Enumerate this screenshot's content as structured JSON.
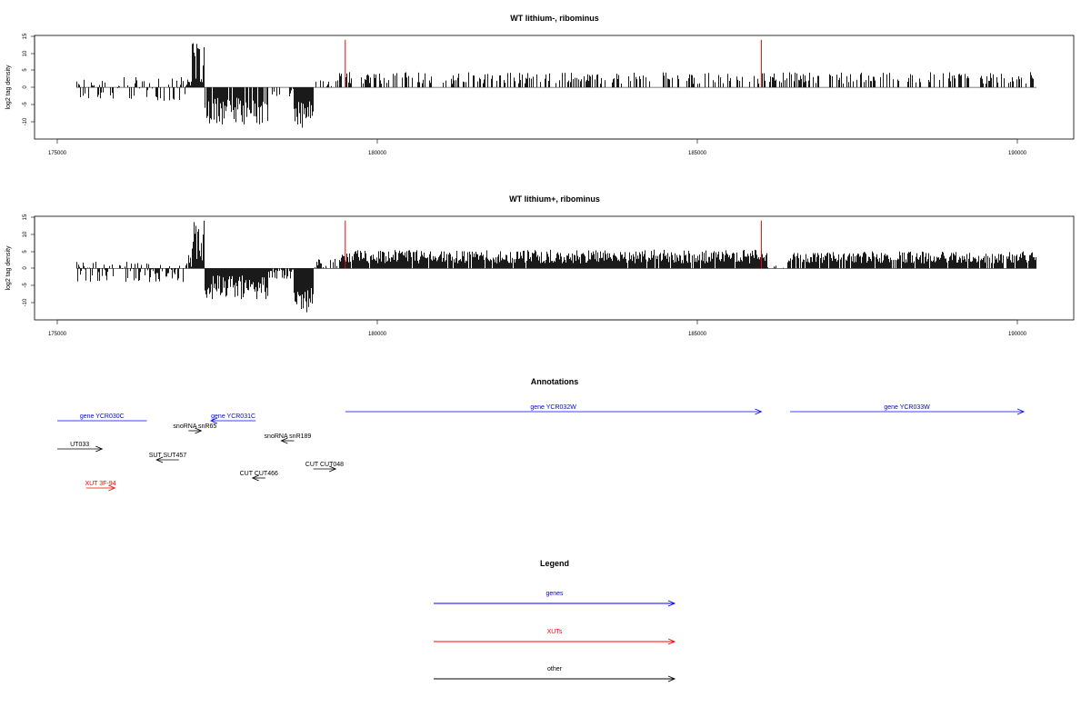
{
  "colors": {
    "genes": "#0000ff",
    "XUTs": "#ff0000",
    "other": "#000000",
    "highlight": "#ff0000",
    "signal": "#000000"
  },
  "chart_data": [
    {
      "type": "bar",
      "title": "WT lithium-, ribominus",
      "ylabel": "log2 tag density",
      "xlim": [
        175000,
        190300
      ],
      "ylim": [
        -15,
        15
      ],
      "x_ticks": [
        "175000",
        "180000",
        "185000",
        "190000"
      ],
      "y_ticks": [
        "15",
        "10",
        "5",
        "0",
        "-5",
        "-10"
      ],
      "highlight_x": [
        179500,
        186000
      ],
      "highlight_top": 14,
      "segments": [
        {
          "from": 175300,
          "to": 177000,
          "min": -4,
          "max": 3,
          "density": 0.45
        },
        {
          "from": 177000,
          "to": 177100,
          "min": 0,
          "max": 4,
          "density": 0.8
        },
        {
          "from": 177100,
          "to": 177300,
          "min": 1,
          "max": 13,
          "density": 1
        },
        {
          "from": 177300,
          "to": 178300,
          "min": -11,
          "max": -3,
          "density": 0.9
        },
        {
          "from": 178300,
          "to": 178700,
          "min": -3,
          "max": 0,
          "density": 0.3
        },
        {
          "from": 178700,
          "to": 179000,
          "min": -12,
          "max": -4,
          "density": 1
        },
        {
          "from": 179000,
          "to": 179400,
          "min": 0,
          "max": 3,
          "density": 0.2
        },
        {
          "from": 179400,
          "to": 190300,
          "min": 1,
          "max": 4.5,
          "density": 0.38
        }
      ]
    },
    {
      "type": "bar",
      "title": "WT lithium+, ribominus",
      "ylabel": "log2 tag density",
      "xlim": [
        175000,
        190300
      ],
      "ylim": [
        -15,
        15
      ],
      "x_ticks": [
        "175000",
        "180000",
        "185000",
        "190000"
      ],
      "y_ticks": [
        "15",
        "10",
        "5",
        "0",
        "-5",
        "-10"
      ],
      "highlight_x": [
        179500,
        186000
      ],
      "highlight_top": 14,
      "segments": [
        {
          "from": 175300,
          "to": 177000,
          "min": -4,
          "max": 2,
          "density": 0.7
        },
        {
          "from": 177000,
          "to": 177100,
          "min": 0,
          "max": 4,
          "density": 1
        },
        {
          "from": 177100,
          "to": 177300,
          "min": 2,
          "max": 14,
          "density": 1
        },
        {
          "from": 177300,
          "to": 178300,
          "min": -9,
          "max": -2,
          "density": 1
        },
        {
          "from": 178300,
          "to": 178700,
          "min": -3,
          "max": 0,
          "density": 0.6
        },
        {
          "from": 178700,
          "to": 179000,
          "min": -13,
          "max": -5,
          "density": 1
        },
        {
          "from": 179000,
          "to": 179400,
          "min": 0,
          "max": 3,
          "density": 0.5
        },
        {
          "from": 179400,
          "to": 186100,
          "min": 1.5,
          "max": 5.5,
          "density": 0.95
        },
        {
          "from": 186100,
          "to": 186400,
          "min": 0,
          "max": 1,
          "density": 0.3
        },
        {
          "from": 186400,
          "to": 190300,
          "min": 1.5,
          "max": 5,
          "density": 0.9
        }
      ]
    }
  ],
  "annotations": {
    "title": "Annotations",
    "items": [
      {
        "label": "gene YCR030C",
        "class": "genes",
        "from": 175000,
        "to": 176400,
        "dir": "none",
        "row": 0
      },
      {
        "label": "gene YCR031C",
        "class": "genes",
        "from": 177400,
        "to": 178100,
        "dir": "left",
        "row": 0
      },
      {
        "label": "snoRNA snR65",
        "class": "other",
        "from": 177050,
        "to": 177250,
        "dir": "right",
        "row": 1
      },
      {
        "label": "gene YCR032W",
        "class": "genes",
        "from": 179500,
        "to": 186000,
        "dir": "right",
        "row": -1
      },
      {
        "label": "gene YCR033W",
        "class": "genes",
        "from": 186450,
        "to": 190100,
        "dir": "right",
        "row": -1
      },
      {
        "label": "snoRNA snR189",
        "class": "other",
        "from": 178500,
        "to": 178700,
        "dir": "left",
        "row": 2
      },
      {
        "label": "UT033",
        "class": "other",
        "from": 175000,
        "to": 175700,
        "dir": "right",
        "row": 3
      },
      {
        "label": "SUT SUT457",
        "class": "other",
        "from": 176550,
        "to": 176900,
        "dir": "left",
        "row": 4
      },
      {
        "label": "CUT CUT048",
        "class": "other",
        "from": 179000,
        "to": 179350,
        "dir": "right",
        "row": 5
      },
      {
        "label": "CUT CUT466",
        "class": "other",
        "from": 178050,
        "to": 178250,
        "dir": "left",
        "row": 6
      },
      {
        "label": "XUT 3F-94",
        "class": "XUTs",
        "from": 175450,
        "to": 175900,
        "dir": "right",
        "row": 7
      }
    ]
  },
  "legend": {
    "title": "Legend",
    "items": [
      {
        "label": "genes",
        "class": "genes"
      },
      {
        "label": "XUTs",
        "class": "XUTs"
      },
      {
        "label": "other",
        "class": "other"
      }
    ]
  }
}
